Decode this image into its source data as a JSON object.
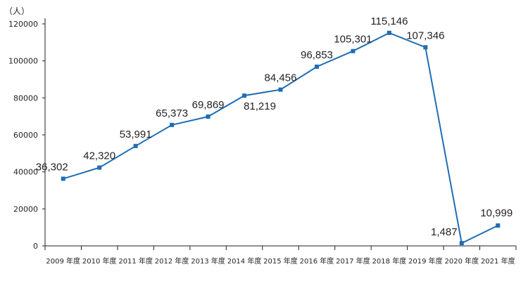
{
  "chart_data": {
    "type": "line",
    "unit_label": "（人）",
    "categories": [
      "2009 年度",
      "2010 年度",
      "2011 年度",
      "2012 年度",
      "2013 年度",
      "2014 年度",
      "2015 年度",
      "2016 年度",
      "2017 年度",
      "2018 年度",
      "2019 年度",
      "2020 年度",
      "2021 年度"
    ],
    "values": [
      36302,
      42320,
      53991,
      65373,
      69869,
      81219,
      84456,
      96853,
      105301,
      115146,
      107346,
      1487,
      10999
    ],
    "data_labels": [
      "36,302",
      "42,320",
      "53,991",
      "65,373",
      "69,869",
      "81,219",
      "84,456",
      "96,853",
      "105,301",
      "115,146",
      "107,346",
      "1,487",
      "10,999"
    ],
    "y_ticks": [
      "0",
      "20000",
      "40000",
      "60000",
      "80000",
      "100000",
      "120000"
    ],
    "ylim": [
      0,
      120000
    ],
    "line_color": "#1f6db3",
    "grid": false,
    "legend": false
  }
}
